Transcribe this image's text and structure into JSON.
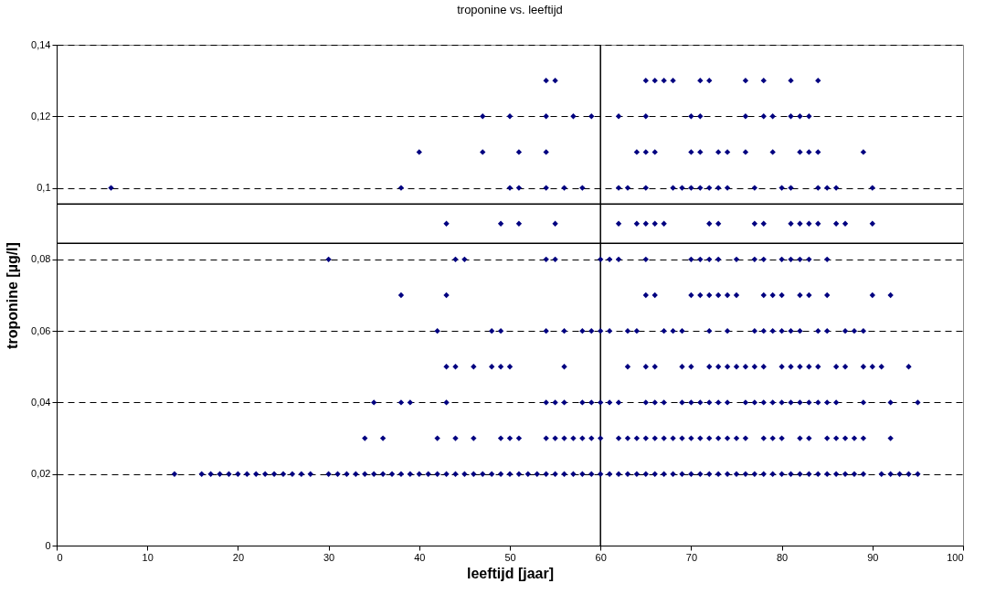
{
  "chart_data": {
    "type": "scatter",
    "title": "troponine vs. leeftijd",
    "xlabel": "leeftijd [jaar]",
    "ylabel": "troponine [µg/l]",
    "xlim": [
      0,
      100
    ],
    "xticks": [
      0,
      10,
      20,
      30,
      40,
      50,
      60,
      70,
      80,
      90,
      100
    ],
    "ylim": [
      0,
      0.14
    ],
    "yticks": [
      0,
      {
        "value": 0.02,
        "label": "0,02"
      },
      {
        "value": 0.04,
        "label": "0,04"
      },
      {
        "value": 0.06,
        "label": "0,06"
      },
      {
        "value": 0.08,
        "label": "0,08"
      },
      {
        "value": 0.1,
        "label": "0,1"
      },
      {
        "value": 0.12,
        "label": "0,12"
      },
      {
        "value": 0.14,
        "label": "0,14"
      }
    ],
    "grid": "y",
    "marker": "diamond",
    "legend": false,
    "ref_lines": [
      {
        "axis": "x",
        "value": 60,
        "label": null,
        "color": "#000000"
      },
      {
        "axis": "y",
        "value": 0.0955,
        "label": null,
        "color": "#000000"
      },
      {
        "axis": "y",
        "value": 0.0845,
        "label": null,
        "color": "#000000"
      }
    ],
    "series": [
      {
        "color": "#000080",
        "x": [
          13,
          16,
          17,
          18,
          19,
          20,
          21,
          22,
          23,
          24,
          25,
          26,
          27,
          28,
          30,
          31,
          32,
          33,
          34,
          35,
          36,
          37,
          38,
          39,
          40,
          41,
          42,
          43,
          44,
          45,
          46,
          47,
          48,
          49,
          50,
          51,
          52,
          53,
          54,
          55,
          56,
          57,
          58,
          59,
          60,
          61,
          62,
          63,
          64,
          65,
          66,
          67,
          68,
          69,
          70,
          71,
          72,
          73,
          74,
          75,
          76,
          77,
          78,
          79,
          80,
          81,
          82,
          83,
          84,
          85,
          86,
          87,
          88,
          89,
          91,
          92,
          93,
          94,
          95
        ],
        "values": [
          0.02,
          0.02,
          0.02,
          0.02,
          0.02,
          0.02,
          0.02,
          0.02,
          0.02,
          0.02,
          0.02,
          0.02,
          0.02,
          0.02,
          0.02,
          0.02,
          0.02,
          0.02,
          0.02,
          0.02,
          0.02,
          0.02,
          0.02,
          0.02,
          0.02,
          0.02,
          0.02,
          0.02,
          0.02,
          0.02,
          0.02,
          0.02,
          0.02,
          0.02,
          0.02,
          0.02,
          0.02,
          0.02,
          0.02,
          0.02,
          0.02,
          0.02,
          0.02,
          0.02,
          0.02,
          0.02,
          0.02,
          0.02,
          0.02,
          0.02,
          0.02,
          0.02,
          0.02,
          0.02,
          0.02,
          0.02,
          0.02,
          0.02,
          0.02,
          0.02,
          0.02,
          0.02,
          0.02,
          0.02,
          0.02,
          0.02,
          0.02,
          0.02,
          0.02,
          0.02,
          0.02,
          0.02,
          0.02,
          0.02,
          0.02,
          0.02,
          0.02,
          0.02,
          0.02
        ]
      },
      {
        "color": "#000080",
        "x": [
          34,
          36,
          42,
          44,
          46,
          49,
          50,
          51,
          54,
          55,
          56,
          57,
          58,
          59,
          60,
          62,
          63,
          64,
          65,
          66,
          67,
          68,
          69,
          70,
          71,
          72,
          73,
          74,
          75,
          76,
          78,
          79,
          80,
          82,
          83,
          85,
          86,
          87,
          88,
          89,
          92
        ],
        "values": [
          0.03,
          0.03,
          0.03,
          0.03,
          0.03,
          0.03,
          0.03,
          0.03,
          0.03,
          0.03,
          0.03,
          0.03,
          0.03,
          0.03,
          0.03,
          0.03,
          0.03,
          0.03,
          0.03,
          0.03,
          0.03,
          0.03,
          0.03,
          0.03,
          0.03,
          0.03,
          0.03,
          0.03,
          0.03,
          0.03,
          0.03,
          0.03,
          0.03,
          0.03,
          0.03,
          0.03,
          0.03,
          0.03,
          0.03,
          0.03,
          0.03
        ]
      },
      {
        "color": "#000080",
        "x": [
          35,
          38,
          39,
          43,
          54,
          55,
          56,
          58,
          59,
          60,
          61,
          62,
          65,
          66,
          67,
          69,
          70,
          71,
          72,
          73,
          74,
          76,
          77,
          78,
          79,
          80,
          81,
          82,
          83,
          84,
          85,
          86,
          89,
          92,
          95
        ],
        "values": [
          0.04,
          0.04,
          0.04,
          0.04,
          0.04,
          0.04,
          0.04,
          0.04,
          0.04,
          0.04,
          0.04,
          0.04,
          0.04,
          0.04,
          0.04,
          0.04,
          0.04,
          0.04,
          0.04,
          0.04,
          0.04,
          0.04,
          0.04,
          0.04,
          0.04,
          0.04,
          0.04,
          0.04,
          0.04,
          0.04,
          0.04,
          0.04,
          0.04,
          0.04,
          0.04
        ]
      },
      {
        "color": "#000080",
        "x": [
          43,
          44,
          46,
          48,
          49,
          50,
          56,
          63,
          65,
          66,
          69,
          70,
          72,
          73,
          74,
          75,
          76,
          77,
          78,
          80,
          81,
          82,
          83,
          84,
          86,
          87,
          89,
          90,
          91,
          94
        ],
        "values": [
          0.05,
          0.05,
          0.05,
          0.05,
          0.05,
          0.05,
          0.05,
          0.05,
          0.05,
          0.05,
          0.05,
          0.05,
          0.05,
          0.05,
          0.05,
          0.05,
          0.05,
          0.05,
          0.05,
          0.05,
          0.05,
          0.05,
          0.05,
          0.05,
          0.05,
          0.05,
          0.05,
          0.05,
          0.05,
          0.05
        ]
      },
      {
        "color": "#000080",
        "x": [
          42,
          48,
          49,
          54,
          56,
          58,
          59,
          60,
          61,
          63,
          64,
          67,
          68,
          69,
          72,
          74,
          77,
          78,
          79,
          80,
          81,
          82,
          84,
          85,
          87,
          88,
          89
        ],
        "values": [
          0.06,
          0.06,
          0.06,
          0.06,
          0.06,
          0.06,
          0.06,
          0.06,
          0.06,
          0.06,
          0.06,
          0.06,
          0.06,
          0.06,
          0.06,
          0.06,
          0.06,
          0.06,
          0.06,
          0.06,
          0.06,
          0.06,
          0.06,
          0.06,
          0.06,
          0.06,
          0.06
        ]
      },
      {
        "color": "#000080",
        "x": [
          38,
          43,
          65,
          66,
          70,
          71,
          72,
          73,
          74,
          75,
          78,
          79,
          80,
          82,
          83,
          85,
          90,
          92
        ],
        "values": [
          0.07,
          0.07,
          0.07,
          0.07,
          0.07,
          0.07,
          0.07,
          0.07,
          0.07,
          0.07,
          0.07,
          0.07,
          0.07,
          0.07,
          0.07,
          0.07,
          0.07,
          0.07
        ]
      },
      {
        "color": "#000080",
        "x": [
          30,
          44,
          45,
          54,
          55,
          60,
          61,
          62,
          65,
          70,
          71,
          72,
          73,
          75,
          77,
          78,
          80,
          81,
          82,
          83,
          85
        ],
        "values": [
          0.08,
          0.08,
          0.08,
          0.08,
          0.08,
          0.08,
          0.08,
          0.08,
          0.08,
          0.08,
          0.08,
          0.08,
          0.08,
          0.08,
          0.08,
          0.08,
          0.08,
          0.08,
          0.08,
          0.08,
          0.08
        ]
      },
      {
        "color": "#000080",
        "x": [
          43,
          49,
          51,
          55,
          62,
          64,
          65,
          66,
          67,
          72,
          73,
          77,
          78,
          81,
          82,
          83,
          84,
          86,
          87,
          90
        ],
        "values": [
          0.09,
          0.09,
          0.09,
          0.09,
          0.09,
          0.09,
          0.09,
          0.09,
          0.09,
          0.09,
          0.09,
          0.09,
          0.09,
          0.09,
          0.09,
          0.09,
          0.09,
          0.09,
          0.09,
          0.09
        ]
      },
      {
        "color": "#000080",
        "x": [
          6,
          38,
          50,
          51,
          54,
          56,
          58,
          62,
          63,
          65,
          68,
          69,
          70,
          71,
          72,
          73,
          74,
          77,
          80,
          81,
          84,
          85,
          86,
          90
        ],
        "values": [
          0.1,
          0.1,
          0.1,
          0.1,
          0.1,
          0.1,
          0.1,
          0.1,
          0.1,
          0.1,
          0.1,
          0.1,
          0.1,
          0.1,
          0.1,
          0.1,
          0.1,
          0.1,
          0.1,
          0.1,
          0.1,
          0.1,
          0.1,
          0.1
        ]
      },
      {
        "color": "#000080",
        "x": [
          40,
          47,
          51,
          54,
          64,
          65,
          66,
          70,
          71,
          73,
          74,
          76,
          79,
          82,
          83,
          84,
          89
        ],
        "values": [
          0.11,
          0.11,
          0.11,
          0.11,
          0.11,
          0.11,
          0.11,
          0.11,
          0.11,
          0.11,
          0.11,
          0.11,
          0.11,
          0.11,
          0.11,
          0.11,
          0.11
        ]
      },
      {
        "color": "#000080",
        "x": [
          47,
          50,
          54,
          57,
          59,
          62,
          65,
          70,
          71,
          76,
          78,
          79,
          81,
          82,
          83
        ],
        "values": [
          0.12,
          0.12,
          0.12,
          0.12,
          0.12,
          0.12,
          0.12,
          0.12,
          0.12,
          0.12,
          0.12,
          0.12,
          0.12,
          0.12,
          0.12
        ]
      },
      {
        "color": "#000080",
        "x": [
          54,
          55,
          65,
          66,
          67,
          68,
          71,
          72,
          76,
          78,
          81,
          84
        ],
        "values": [
          0.13,
          0.13,
          0.13,
          0.13,
          0.13,
          0.13,
          0.13,
          0.13,
          0.13,
          0.13,
          0.13,
          0.13
        ]
      }
    ]
  }
}
